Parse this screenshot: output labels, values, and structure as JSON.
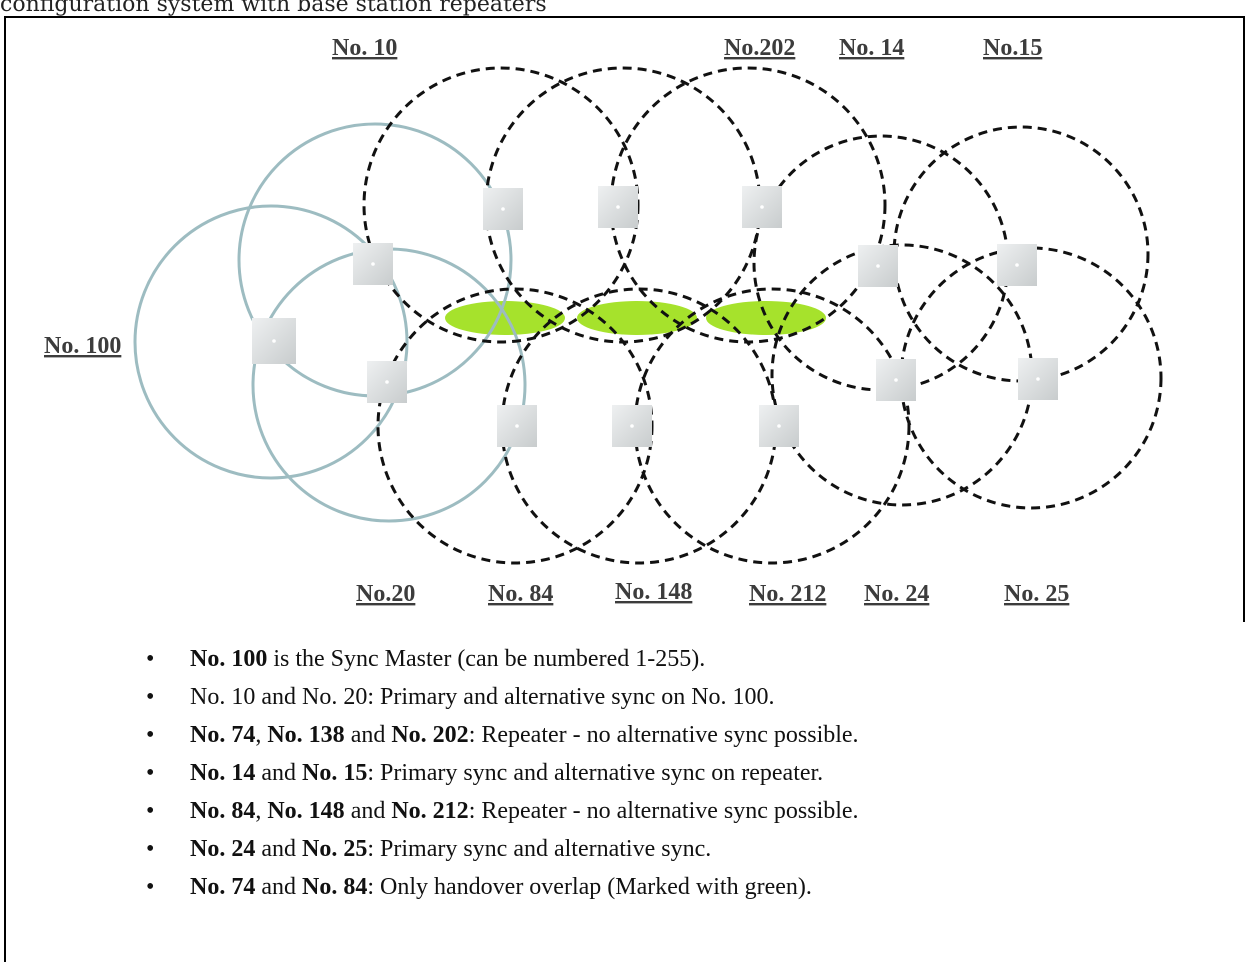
{
  "top_caption": "configuration system with base station repeaters",
  "labels": {
    "n10": "No. 10",
    "n202": "No.202",
    "n14": "No. 14",
    "n15": "No.15",
    "n100": "No. 100",
    "n20": "No.20",
    "n84": "No. 84",
    "n148": "No. 148",
    "n212": "No. 212",
    "n24": "No. 24",
    "n25": "No. 25"
  },
  "colors": {
    "master_circle": "#9dbcc1",
    "repeater_circle": "#111111",
    "overlap_fill": "#a6e22c",
    "base_station": "#d9dcdd"
  },
  "icons": {
    "bullet": "•",
    "base_station": "base-station-icon"
  },
  "bullets": [
    {
      "b1": "No. 100",
      "t1": " is the Sync Master (can be numbered 1-255)."
    },
    {
      "t1": "No. 10 and No. 20: Primary and alternative sync on No. 100."
    },
    {
      "b1": "No. 74",
      "t1": ", ",
      "b2": "No. 138",
      "t2": " and ",
      "b3": "No. 202",
      "t3": ": Repeater - no alternative sync possible."
    },
    {
      "b1": "No. 14",
      "t1": " and ",
      "b2": "No. 15",
      "t2": ": Primary sync and alternative sync on repeater."
    },
    {
      "b1": "No. 84",
      "t1": ", ",
      "b2": "No. 148",
      "t2": " and ",
      "b3": "No. 212",
      "t3": ": Repeater - no alternative sync possible."
    },
    {
      "b1": "No. 24",
      "t1": " and ",
      "b2": "No. 25",
      "t2": ": Primary sync and alternative sync."
    },
    {
      "b1": "No. 74",
      "t1": " and ",
      "b2": "No. 84",
      "t2": ": Only handover overlap (Marked with green)."
    }
  ]
}
